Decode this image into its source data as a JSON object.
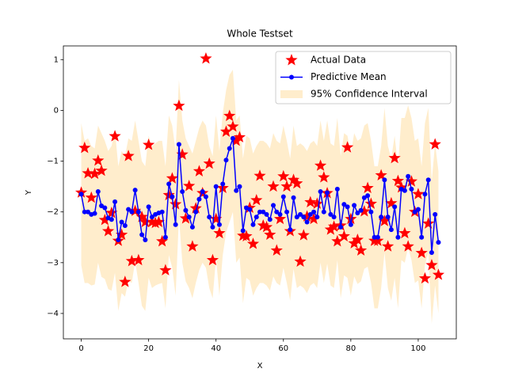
{
  "chart_data": {
    "type": "regression",
    "title": "Whole Testset",
    "xlabel": "X",
    "ylabel": "Y",
    "xlim": [
      -5.3,
      111.3
    ],
    "ylim": [
      -4.5,
      1.27
    ],
    "xticks": [
      0,
      20,
      40,
      60,
      80,
      100
    ],
    "yticks": [
      {
        "value": 1,
        "label": "1"
      },
      {
        "value": 0,
        "label": "0"
      },
      {
        "value": -1,
        "label": "−1"
      },
      {
        "value": -2,
        "label": "−2"
      },
      {
        "value": -3,
        "label": "−3"
      },
      {
        "value": -4,
        "label": "−4"
      }
    ],
    "legend": "upper right",
    "x": [
      0,
      1,
      2,
      3,
      4,
      5,
      6,
      7,
      8,
      9,
      10,
      11,
      12,
      13,
      14,
      15,
      16,
      17,
      18,
      19,
      20,
      21,
      22,
      23,
      24,
      25,
      26,
      27,
      28,
      29,
      30,
      31,
      32,
      33,
      34,
      35,
      36,
      37,
      38,
      39,
      40,
      41,
      42,
      43,
      44,
      45,
      46,
      47,
      48,
      49,
      50,
      51,
      52,
      53,
      54,
      55,
      56,
      57,
      58,
      59,
      60,
      61,
      62,
      63,
      64,
      65,
      66,
      67,
      68,
      69,
      70,
      71,
      72,
      73,
      74,
      75,
      76,
      77,
      78,
      79,
      80,
      81,
      82,
      83,
      84,
      85,
      86,
      87,
      88,
      89,
      90,
      91,
      92,
      93,
      94,
      95,
      96,
      97,
      98,
      99,
      100,
      101,
      102,
      103,
      104,
      105,
      106
    ],
    "series": [
      {
        "name": "Actual Data",
        "kind": "scatter",
        "color": "#ff0000",
        "values": [
          -1.62,
          -0.74,
          -1.24,
          -1.72,
          -1.25,
          -0.99,
          -1.19,
          -2.16,
          -2.38,
          -2.02,
          -0.51,
          -2.57,
          -2.45,
          -3.38,
          -0.9,
          -2.97,
          -1.98,
          -2.95,
          -2.1,
          -2.2,
          -0.68,
          -2.2,
          -2.22,
          -2.2,
          -2.58,
          -3.15,
          -1.67,
          -1.34,
          -1.85,
          0.09,
          -0.87,
          -2.13,
          -1.49,
          -2.68,
          -1.93,
          -1.2,
          -1.63,
          1.02,
          -1.05,
          -2.95,
          -2.14,
          -2.42,
          -1.53,
          -0.42,
          -0.11,
          -0.32,
          -0.6,
          -0.53,
          -2.47,
          -2.48,
          -1.92,
          -2.63,
          -1.77,
          -1.29,
          -2.27,
          -2.3,
          -2.45,
          -1.5,
          -2.76,
          -2.14,
          -1.3,
          -1.5,
          -2.38,
          -1.37,
          -1.44,
          -2.98,
          -2.46,
          -2.09,
          -1.81,
          -2.14,
          -1.84,
          -1.09,
          -1.32,
          -1.63,
          -2.35,
          -2.29,
          -2.58,
          -2.27,
          -2.48,
          -0.73,
          -2.14,
          -2.62,
          -2.55,
          -2.76,
          -1.99,
          -1.53,
          -1.84,
          -2.57,
          -2.57,
          -1.28,
          -2.18,
          -2.68,
          -1.83,
          -0.94,
          -1.39,
          -1.52,
          -2.42,
          -2.68,
          -1.4,
          -2.0,
          -1.65,
          -2.81,
          -3.31,
          -2.23,
          -3.05,
          -0.67,
          -3.24
        ]
      },
      {
        "name": "Predictive Mean",
        "kind": "line",
        "color": "#0000ff",
        "values": [
          -1.65,
          -2.0,
          -2.0,
          -2.05,
          -2.03,
          -1.6,
          -1.88,
          -1.92,
          -2.12,
          -2.15,
          -1.8,
          -2.55,
          -2.2,
          -2.27,
          -1.95,
          -2.0,
          -1.57,
          -2.0,
          -2.45,
          -2.55,
          -1.9,
          -2.1,
          -2.05,
          -2.02,
          -2.0,
          -2.5,
          -1.45,
          -1.7,
          -2.25,
          -0.67,
          -1.6,
          -1.97,
          -2.1,
          -2.3,
          -2.0,
          -1.75,
          -1.6,
          -1.7,
          -2.1,
          -2.3,
          -1.5,
          -2.25,
          -1.45,
          -0.98,
          -0.75,
          -0.55,
          -1.58,
          -1.5,
          -2.37,
          -1.92,
          -1.95,
          -2.25,
          -2.1,
          -2.0,
          -2.0,
          -2.05,
          -2.15,
          -1.87,
          -2.0,
          -2.05,
          -1.7,
          -2.0,
          -2.35,
          -1.72,
          -2.1,
          -2.05,
          -2.1,
          -2.2,
          -2.05,
          -2.0,
          -2.1,
          -1.6,
          -2.0,
          -1.62,
          -2.05,
          -2.1,
          -1.55,
          -2.3,
          -1.85,
          -1.9,
          -2.25,
          -1.87,
          -2.02,
          -1.97,
          -1.72,
          -1.68,
          -2.0,
          -2.5,
          -2.5,
          -2.1,
          -1.37,
          -2.1,
          -2.35,
          -1.9,
          -2.5,
          -1.55,
          -1.58,
          -1.3,
          -1.55,
          -2.0,
          -1.95,
          -2.5,
          -1.65,
          -1.37,
          -2.8,
          -2.05,
          -2.6
        ]
      },
      {
        "name": "95% Confidence Interval",
        "kind": "band",
        "color": "#ffa500",
        "upper": [
          -0.25,
          -0.6,
          -0.55,
          -0.7,
          -0.75,
          -0.3,
          -0.45,
          -0.6,
          -0.8,
          -0.7,
          -0.4,
          -1.1,
          -0.8,
          -0.9,
          -0.55,
          -0.6,
          -0.2,
          -0.6,
          -1.0,
          -1.1,
          -0.5,
          -0.7,
          -0.65,
          -0.6,
          -0.6,
          -1.1,
          -0.1,
          -0.3,
          -0.8,
          0.6,
          -0.2,
          -0.55,
          -0.7,
          -0.85,
          -0.6,
          -0.35,
          -0.2,
          -0.3,
          -0.7,
          -0.9,
          -0.1,
          -0.8,
          -0.05,
          0.4,
          0.7,
          0.8,
          -0.2,
          -0.1,
          -0.95,
          -0.5,
          -0.55,
          -0.85,
          -0.7,
          -0.6,
          -0.6,
          -0.65,
          -0.75,
          -0.45,
          -0.6,
          -0.65,
          -0.3,
          -0.6,
          -0.95,
          -0.3,
          -0.7,
          -0.65,
          -0.7,
          -0.8,
          -0.65,
          -0.6,
          -0.7,
          -0.2,
          -0.6,
          -0.2,
          -0.65,
          -0.7,
          -0.15,
          -0.9,
          -0.45,
          -0.5,
          -0.85,
          -0.45,
          -0.6,
          -0.55,
          -0.3,
          -0.25,
          -0.6,
          -1.1,
          -1.1,
          -0.7,
          0.05,
          -0.7,
          -0.95,
          -0.5,
          -1.1,
          -0.15,
          -0.15,
          0.1,
          -0.15,
          -0.6,
          -0.55,
          -1.1,
          -0.25,
          0.05,
          -1.4,
          -0.65,
          -1.2
        ],
        "lower": [
          -3.05,
          -3.4,
          -3.4,
          -3.45,
          -3.43,
          -3.0,
          -3.28,
          -3.32,
          -3.52,
          -3.55,
          -3.2,
          -3.95,
          -3.6,
          -3.67,
          -3.35,
          -3.4,
          -2.97,
          -3.4,
          -3.85,
          -3.95,
          -3.3,
          -3.5,
          -3.45,
          -3.42,
          -3.4,
          -3.9,
          -2.85,
          -3.1,
          -3.65,
          -2.1,
          -3.0,
          -3.37,
          -3.5,
          -3.7,
          -3.4,
          -3.15,
          -3.0,
          -3.1,
          -3.5,
          -3.7,
          -2.9,
          -3.65,
          -2.85,
          -2.4,
          -2.2,
          -2.0,
          -3.0,
          -2.9,
          -3.8,
          -3.3,
          -3.35,
          -3.65,
          -3.5,
          -3.4,
          -3.4,
          -3.45,
          -3.55,
          -3.27,
          -3.4,
          -3.45,
          -3.1,
          -3.4,
          -3.75,
          -3.12,
          -3.5,
          -3.45,
          -3.5,
          -3.6,
          -3.45,
          -3.4,
          -3.5,
          -3.0,
          -3.4,
          -3.02,
          -3.45,
          -3.5,
          -2.95,
          -3.7,
          -3.25,
          -3.3,
          -3.65,
          -3.27,
          -3.42,
          -3.37,
          -3.12,
          -3.08,
          -3.4,
          -3.9,
          -3.9,
          -3.5,
          -2.8,
          -3.5,
          -3.75,
          -3.3,
          -3.9,
          -2.95,
          -3.0,
          -2.7,
          -2.95,
          -3.4,
          -3.35,
          -3.9,
          -3.05,
          -2.8,
          -4.2,
          -3.45,
          -4.0
        ]
      }
    ]
  }
}
